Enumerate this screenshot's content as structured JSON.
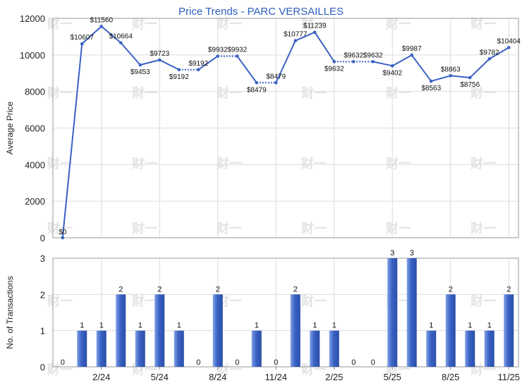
{
  "chart_data": [
    {
      "type": "line",
      "title": "Price Trends - PARC VERSAILLES",
      "ylabel": "Average Price",
      "ylim": [
        0,
        12000
      ],
      "yticks": [
        "0",
        "2000",
        "4000",
        "6000",
        "8000",
        "10000",
        "12000"
      ],
      "color": "#3a62c4",
      "points": [
        {
          "label": "$0",
          "value": 0
        },
        {
          "label": "$10607",
          "value": 10607
        },
        {
          "label": "$11560",
          "value": 11560
        },
        {
          "label": "$10664",
          "value": 10664
        },
        {
          "label": "$9453",
          "value": 9453
        },
        {
          "label": "$9723",
          "value": 9723
        },
        {
          "label": "$9192",
          "value": 9192,
          "dotted_from_prev": false
        },
        {
          "label": "$9192",
          "value": 9192,
          "dotted_from_prev": true
        },
        {
          "label": "$9932",
          "value": 9932
        },
        {
          "label": "$9932",
          "value": 9932,
          "dotted_from_prev": true
        },
        {
          "label": "$8479",
          "value": 8479
        },
        {
          "label": "$8479",
          "value": 8479,
          "dotted_from_prev": true
        },
        {
          "label": "$10777",
          "value": 10777
        },
        {
          "label": "$11239",
          "value": 11239
        },
        {
          "label": "$9632",
          "value": 9632
        },
        {
          "label": "$9632",
          "value": 9632,
          "dotted_from_prev": true
        },
        {
          "label": "$9632",
          "value": 9632,
          "dotted_from_prev": true
        },
        {
          "label": "$9402",
          "value": 9402
        },
        {
          "label": "$9987",
          "value": 9987
        },
        {
          "label": "$8563",
          "value": 8563
        },
        {
          "label": "$8863",
          "value": 8863
        },
        {
          "label": "$8756",
          "value": 8756
        },
        {
          "label": "$9782",
          "value": 9782
        },
        {
          "label": "$10404",
          "value": 10404
        }
      ]
    },
    {
      "type": "bar",
      "ylabel": "No. of Transactions",
      "ylim": [
        0,
        3
      ],
      "yticks": [
        "0",
        "1",
        "2",
        "3"
      ],
      "color": "#3a62c4",
      "values": [
        0,
        1,
        1,
        2,
        1,
        2,
        1,
        0,
        2,
        0,
        1,
        0,
        2,
        1,
        1,
        0,
        0,
        3,
        3,
        1,
        2,
        1,
        1,
        2
      ],
      "xtick_labels": [
        "2/24",
        "5/24",
        "8/24",
        "11/24",
        "2/25",
        "5/25",
        "8/25",
        "11/25"
      ]
    }
  ],
  "watermark": "财一"
}
